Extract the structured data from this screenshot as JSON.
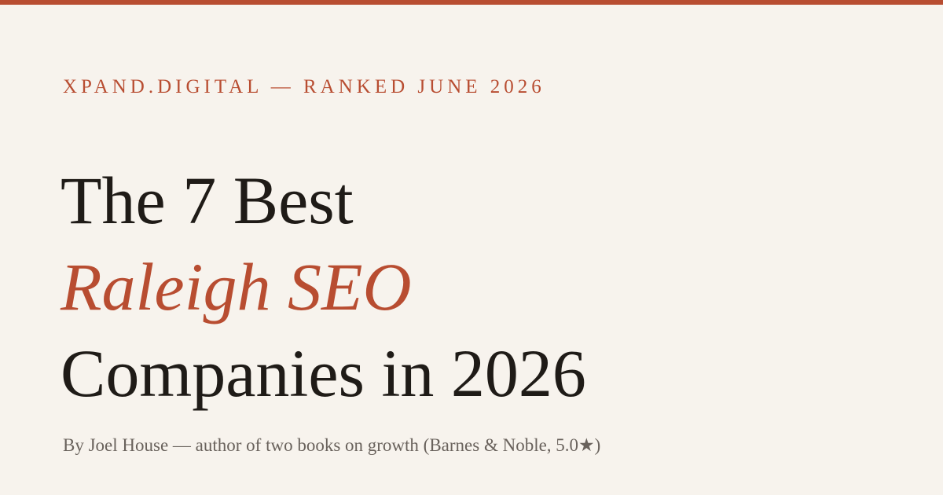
{
  "header": {
    "eyebrow": "XPAND.DIGITAL — RANKED JUNE 2026"
  },
  "headline": {
    "line_1": "The 7 Best",
    "line_2": "Raleigh SEO",
    "line_3": "Companies in 2026"
  },
  "byline": {
    "text": "By Joel House — author of two books on growth (Barnes & Noble, 5.0★)"
  },
  "colors": {
    "accent": "#b84d31",
    "background": "#f7f3ed",
    "heading": "#1f1b17",
    "muted": "#69625c"
  }
}
